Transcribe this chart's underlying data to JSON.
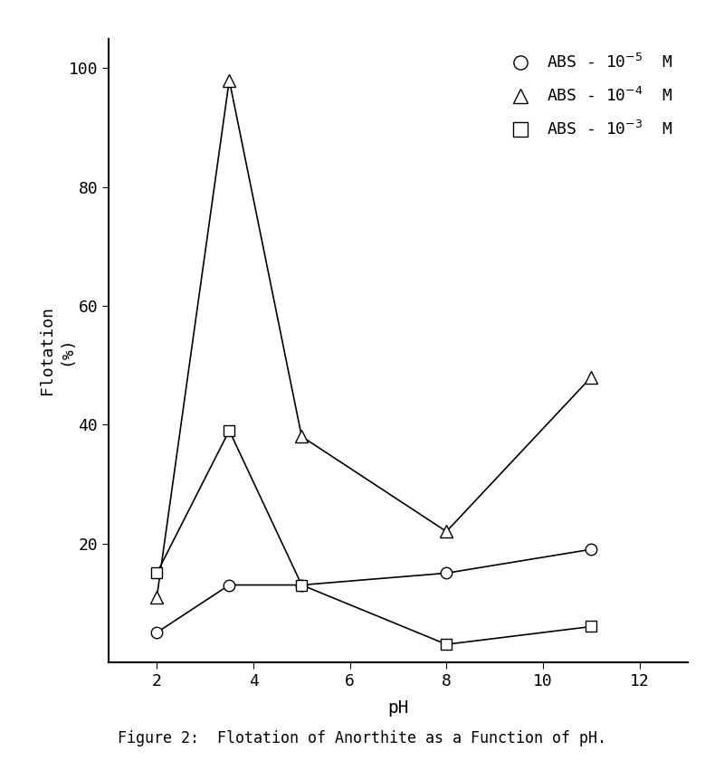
{
  "title": "Figure 2:  Flotation of Anorthite as a Function of pH.",
  "xlabel": "pH",
  "ylabel_line1": "Flotation",
  "ylabel_line2": "(%)",
  "xlim": [
    1,
    13
  ],
  "ylim": [
    0,
    105
  ],
  "xticks": [
    2,
    4,
    6,
    8,
    10,
    12
  ],
  "yticks": [
    20,
    40,
    60,
    80,
    100
  ],
  "series": [
    {
      "label_text": "ABS - 10",
      "label_exp": "-5",
      "label_suffix": " M",
      "x": [
        2,
        3.5,
        5,
        8,
        11
      ],
      "y": [
        5,
        13,
        13,
        15,
        19
      ],
      "marker": "o",
      "markersize": 9,
      "markerfacecolor": "white",
      "markeredgecolor": "black",
      "color": "black",
      "linewidth": 1.2
    },
    {
      "label_text": "ABS - 10",
      "label_exp": "-4",
      "label_suffix": " M",
      "x": [
        2,
        3.5,
        5,
        8,
        11
      ],
      "y": [
        11,
        98,
        38,
        22,
        48
      ],
      "marker": "^",
      "markersize": 10,
      "markerfacecolor": "white",
      "markeredgecolor": "black",
      "color": "black",
      "linewidth": 1.2
    },
    {
      "label_text": "ABS - 10",
      "label_exp": "-3",
      "label_suffix": " M",
      "x": [
        2,
        3.5,
        5,
        8,
        11
      ],
      "y": [
        15,
        39,
        13,
        3,
        6
      ],
      "marker": "s",
      "markersize": 9,
      "markerfacecolor": "white",
      "markeredgecolor": "black",
      "color": "black",
      "linewidth": 1.2
    }
  ],
  "legend_markers": [
    "o",
    "^",
    "s"
  ],
  "legend_exponents": [
    "-5",
    "-4",
    "-3"
  ],
  "background_color": "#ffffff",
  "font_family": "DejaVu Sans Mono"
}
